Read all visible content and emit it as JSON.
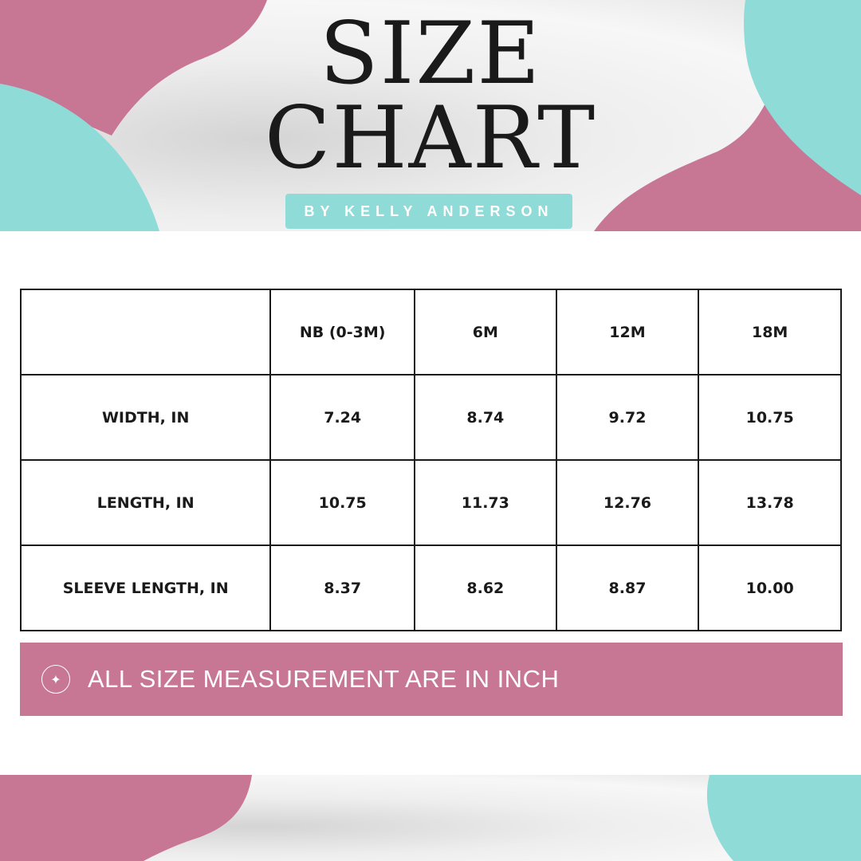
{
  "header": {
    "title_line1": "SIZE",
    "title_line2": "CHART",
    "byline": "BY KELLY ANDERSON"
  },
  "table": {
    "columns": [
      "",
      "NB (0-3M)",
      "6M",
      "12M",
      "18M"
    ],
    "rows": [
      {
        "label": "WIDTH, IN",
        "values": [
          "7.24",
          "8.74",
          "9.72",
          "10.75"
        ]
      },
      {
        "label": "LENGTH, IN",
        "values": [
          "10.75",
          "11.73",
          "12.76",
          "13.78"
        ]
      },
      {
        "label": "SLEEVE LENGTH, IN",
        "values": [
          "8.37",
          "8.62",
          "8.87",
          "10.00"
        ]
      }
    ]
  },
  "note": {
    "icon": "sparkle-icon",
    "text": "ALL SIZE MEASUREMENT ARE IN INCH"
  },
  "colors": {
    "pink": "#C77694",
    "teal": "#8FDBD8",
    "text": "#1A1A1A"
  }
}
